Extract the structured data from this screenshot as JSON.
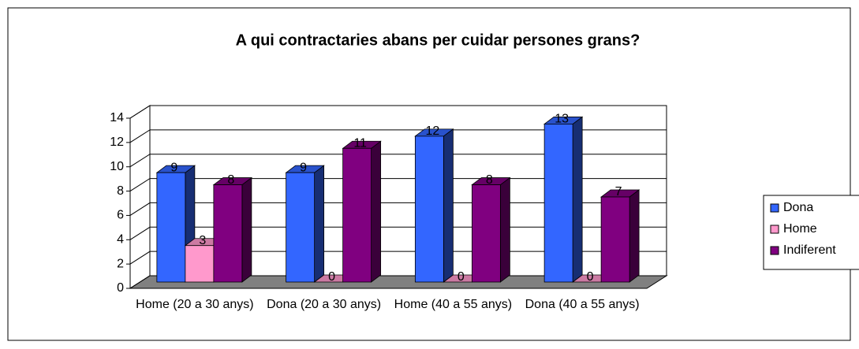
{
  "chart_data": {
    "type": "bar3d",
    "title": "A qui contractaries abans per cuidar persones grans?",
    "categories": [
      "Home (20 a 30 anys)",
      "Dona (20 a 30 anys)",
      "Home (40 a 55 anys)",
      "Dona (40 a 55 anys)"
    ],
    "series": [
      {
        "name": "Dona",
        "color": "#3366ff",
        "values": [
          9,
          9,
          12,
          13
        ]
      },
      {
        "name": "Home",
        "color": "#ff99cc",
        "values": [
          3,
          0,
          0,
          0
        ]
      },
      {
        "name": "Indiferent",
        "color": "#800080",
        "values": [
          8,
          11,
          8,
          7
        ]
      }
    ],
    "ylim": [
      0,
      14
    ],
    "yticks": [
      0,
      2,
      4,
      6,
      8,
      10,
      12,
      14
    ],
    "grid": true,
    "legend": "right"
  }
}
